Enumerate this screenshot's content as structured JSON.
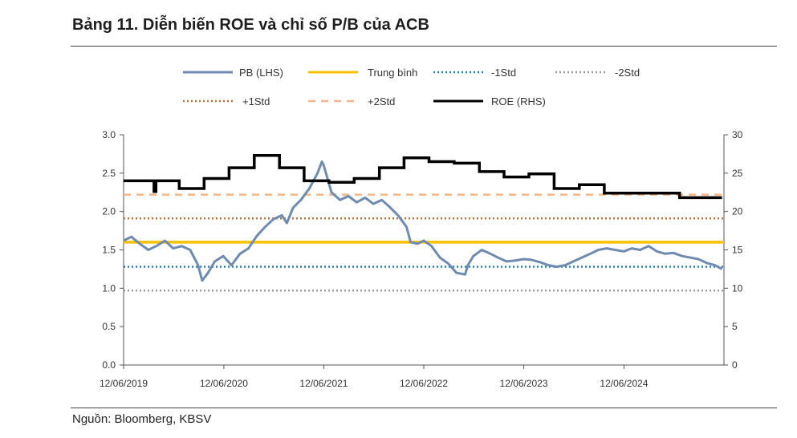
{
  "title": "Bảng 11. Diễn biến ROE và chỉ số P/B của ACB",
  "source": "Nguồn: Bloomberg, KBSV",
  "colors": {
    "pb": "#6f8bb0",
    "mean": "#f5c100",
    "minus1": "#2a7fa6",
    "minus2": "#9a9a9a",
    "plus1": "#c0743a",
    "plus2": "#f2b88a",
    "roe": "#000000"
  },
  "chart_data": {
    "type": "line",
    "x_ticks": [
      "12/06/2019",
      "12/06/2020",
      "12/06/2021",
      "12/06/2022",
      "12/06/2023",
      "12/06/2024"
    ],
    "x_range": [
      "2019-06-12",
      "2025-06-12"
    ],
    "y_left": {
      "ticks": [
        "0.0",
        "0.5",
        "1.0",
        "1.5",
        "2.0",
        "2.5",
        "3.0"
      ],
      "range": [
        0,
        3
      ]
    },
    "y_right": {
      "ticks": [
        "0",
        "5",
        "10",
        "15",
        "20",
        "25",
        "30"
      ],
      "range": [
        0,
        30
      ]
    },
    "legend": [
      {
        "key": "pb",
        "label": "PB (LHS)",
        "style": "solid"
      },
      {
        "key": "mean",
        "label": "Trung bình",
        "style": "solid"
      },
      {
        "key": "minus1",
        "label": "-1Std",
        "style": "dotted"
      },
      {
        "key": "minus2",
        "label": "-2Std",
        "style": "dotted"
      },
      {
        "key": "plus1",
        "label": "+1Std",
        "style": "dotted"
      },
      {
        "key": "plus2",
        "label": "+2Std",
        "style": "dashed"
      },
      {
        "key": "roe",
        "label": "ROE (RHS)",
        "style": "solid"
      }
    ],
    "reference_lines": {
      "mean": 1.6,
      "minus1": 1.28,
      "minus2": 0.97,
      "plus1": 1.91,
      "plus2": 2.22
    },
    "series": [
      {
        "name": "PB (LHS)",
        "axis": "left",
        "x": [
          "2019-06-12",
          "2019-07-10",
          "2019-08-10",
          "2019-09-10",
          "2019-10-10",
          "2019-11-10",
          "2019-12-10",
          "2020-01-10",
          "2020-02-10",
          "2020-03-10",
          "2020-03-25",
          "2020-04-15",
          "2020-05-10",
          "2020-06-10",
          "2020-07-10",
          "2020-08-10",
          "2020-09-10",
          "2020-10-10",
          "2020-11-10",
          "2020-12-10",
          "2021-01-10",
          "2021-01-28",
          "2021-02-20",
          "2021-03-20",
          "2021-04-20",
          "2021-05-20",
          "2021-06-05",
          "2021-06-12",
          "2021-07-10",
          "2021-08-10",
          "2021-09-10",
          "2021-10-10",
          "2021-11-10",
          "2021-12-10",
          "2022-01-10",
          "2022-02-10",
          "2022-03-10",
          "2022-04-10",
          "2022-04-25",
          "2022-05-20",
          "2022-06-12",
          "2022-07-10",
          "2022-08-10",
          "2022-09-10",
          "2022-10-10",
          "2022-11-10",
          "2022-11-20",
          "2022-12-10",
          "2023-01-10",
          "2023-02-10",
          "2023-03-10",
          "2023-04-10",
          "2023-05-10",
          "2023-06-12",
          "2023-07-10",
          "2023-08-10",
          "2023-09-10",
          "2023-10-10",
          "2023-11-10",
          "2023-12-10",
          "2024-01-10",
          "2024-02-10",
          "2024-03-10",
          "2024-04-10",
          "2024-05-10",
          "2024-06-12",
          "2024-07-10",
          "2024-08-10",
          "2024-09-10",
          "2024-10-10",
          "2024-11-10",
          "2024-12-10",
          "2025-01-10",
          "2025-02-10",
          "2025-03-10",
          "2025-04-10",
          "2025-05-10",
          "2025-06-05"
        ],
        "values": [
          1.62,
          1.67,
          1.58,
          1.5,
          1.55,
          1.62,
          1.52,
          1.55,
          1.5,
          1.3,
          1.1,
          1.2,
          1.35,
          1.42,
          1.3,
          1.45,
          1.52,
          1.68,
          1.8,
          1.9,
          1.95,
          1.85,
          2.05,
          2.15,
          2.3,
          2.5,
          2.65,
          2.6,
          2.25,
          2.15,
          2.2,
          2.12,
          2.18,
          2.1,
          2.15,
          2.05,
          1.95,
          1.8,
          1.6,
          1.58,
          1.62,
          1.55,
          1.4,
          1.32,
          1.2,
          1.18,
          1.3,
          1.42,
          1.5,
          1.45,
          1.4,
          1.35,
          1.36,
          1.38,
          1.37,
          1.34,
          1.3,
          1.28,
          1.3,
          1.35,
          1.4,
          1.45,
          1.5,
          1.52,
          1.5,
          1.48,
          1.52,
          1.5,
          1.55,
          1.48,
          1.45,
          1.46,
          1.42,
          1.4,
          1.38,
          1.33,
          1.3,
          1.25
        ]
      },
      {
        "name": "ROE (RHS)",
        "axis": "right",
        "x": [
          "2019-06-12",
          "2019-10-01",
          "2019-10-01",
          "2019-10-08",
          "2019-10-08",
          "2020-01-01",
          "2020-01-01",
          "2020-04-01",
          "2020-04-01",
          "2020-07-01",
          "2020-07-01",
          "2020-10-01",
          "2020-10-01",
          "2021-01-01",
          "2021-01-01",
          "2021-04-01",
          "2021-04-01",
          "2021-07-01",
          "2021-07-01",
          "2021-10-01",
          "2021-10-01",
          "2022-01-01",
          "2022-01-01",
          "2022-04-01",
          "2022-04-01",
          "2022-07-01",
          "2022-07-01",
          "2022-10-01",
          "2022-10-01",
          "2023-01-01",
          "2023-01-01",
          "2023-04-01",
          "2023-04-01",
          "2023-07-01",
          "2023-07-01",
          "2023-10-01",
          "2023-10-01",
          "2024-01-01",
          "2024-01-01",
          "2024-04-01",
          "2024-04-01",
          "2025-01-01",
          "2025-01-01",
          "2025-06-05"
        ],
        "values": [
          24.0,
          24.0,
          22.6,
          22.6,
          24.0,
          24.0,
          23.0,
          23.0,
          24.3,
          24.3,
          25.7,
          25.7,
          27.3,
          27.3,
          25.7,
          25.7,
          24.0,
          24.0,
          23.8,
          23.8,
          24.3,
          24.3,
          25.7,
          25.7,
          27.0,
          27.0,
          26.5,
          26.5,
          26.3,
          26.3,
          25.2,
          25.2,
          24.5,
          24.5,
          24.9,
          24.9,
          23.0,
          23.0,
          23.5,
          23.5,
          22.4,
          22.4,
          21.8,
          21.8
        ]
      }
    ]
  }
}
